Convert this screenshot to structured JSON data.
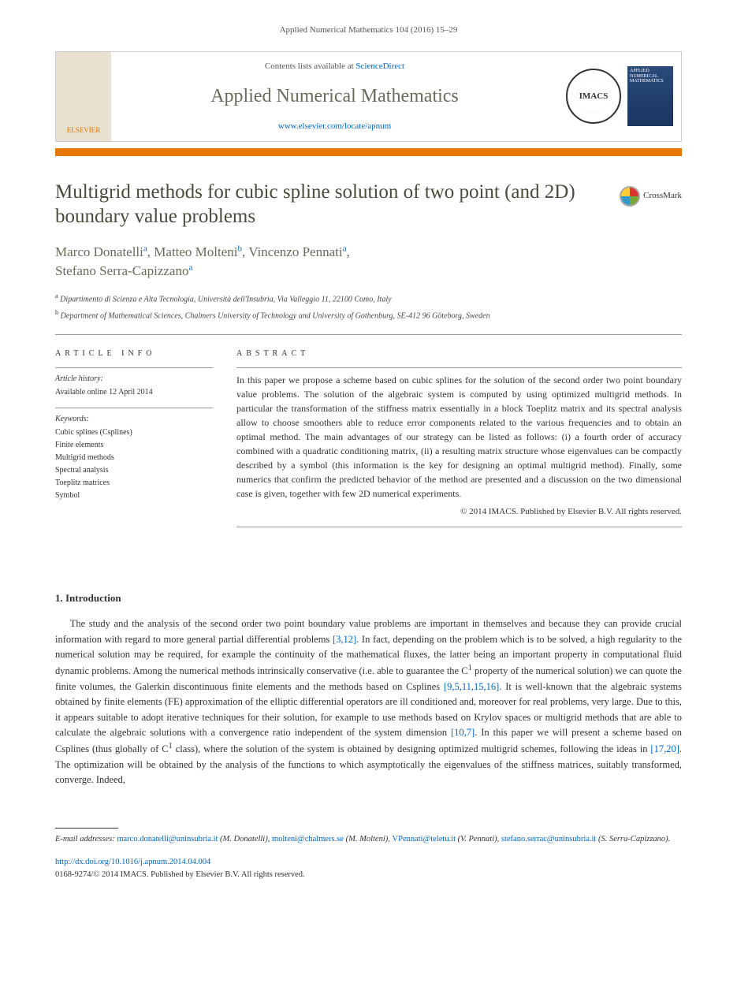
{
  "header_ref": "Applied Numerical Mathematics 104 (2016) 15–29",
  "banner": {
    "contents_text": "Contents lists available at ",
    "contents_link": "ScienceDirect",
    "journal_name": "Applied Numerical Mathematics",
    "journal_url": "www.elsevier.com/locate/apnum",
    "publisher": "ELSEVIER",
    "imacs_label": "IMACS",
    "cover_text": "APPLIED NUMERICAL MATHEMATICS"
  },
  "crossmark_label": "CrossMark",
  "title": "Multigrid methods for cubic spline solution of two point (and 2D) boundary value problems",
  "authors": [
    {
      "name": "Marco Donatelli",
      "aff": "a"
    },
    {
      "name": "Matteo Molteni",
      "aff": "b"
    },
    {
      "name": "Vincenzo Pennati",
      "aff": "a"
    },
    {
      "name": "Stefano Serra-Capizzano",
      "aff": "a"
    }
  ],
  "affiliations": {
    "a": "Dipartimento di Scienza e Alta Tecnologia, Università dell'Insubria, Via Valleggio 11, 22100 Como, Italy",
    "b": "Department of Mathematical Sciences, Chalmers University of Technology and University of Gothenburg, SE-412 96 Göteborg, Sweden"
  },
  "info": {
    "header": "ARTICLE INFO",
    "history_label": "Article history:",
    "history_text": "Available online 12 April 2014",
    "keywords_label": "Keywords:",
    "keywords": [
      "Cubic splines (Csplines)",
      "Finite elements",
      "Multigrid methods",
      "Spectral analysis",
      "Toeplitz matrices",
      "Symbol"
    ]
  },
  "abstract": {
    "header": "ABSTRACT",
    "text": "In this paper we propose a scheme based on cubic splines for the solution of the second order two point boundary value problems. The solution of the algebraic system is computed by using optimized multigrid methods. In particular the transformation of the stiffness matrix essentially in a block Toeplitz matrix and its spectral analysis allow to choose smoothers able to reduce error components related to the various frequencies and to obtain an optimal method. The main advantages of our strategy can be listed as follows: (i) a fourth order of accuracy combined with a quadratic conditioning matrix, (ii) a resulting matrix structure whose eigenvalues can be compactly described by a symbol (this information is the key for designing an optimal multigrid method). Finally, some numerics that confirm the predicted behavior of the method are presented and a discussion on the two dimensional case is given, together with few 2D numerical experiments.",
    "copyright": "© 2014 IMACS. Published by Elsevier B.V. All rights reserved."
  },
  "introduction": {
    "heading": "1. Introduction",
    "paragraph": "The study and the analysis of the second order two point boundary value problems are important in themselves and because they can provide crucial information with regard to more general partial differential problems [3,12]. In fact, depending on the problem which is to be solved, a high regularity to the numerical solution may be required, for example the continuity of the mathematical fluxes, the latter being an important property in computational fluid dynamic problems. Among the numerical methods intrinsically conservative (i.e. able to guarantee the C¹ property of the numerical solution) we can quote the finite volumes, the Galerkin discontinuous finite elements and the methods based on Csplines [9,5,11,15,16]. It is well-known that the algebraic systems obtained by finite elements (FE) approximation of the elliptic differential operators are ill conditioned and, moreover for real problems, very large. Due to this, it appears suitable to adopt iterative techniques for their solution, for example to use methods based on Krylov spaces or multigrid methods that are able to calculate the algebraic solutions with a convergence ratio independent of the system dimension [10,7]. In this paper we will present a scheme based on Csplines (thus globally of C¹ class), where the solution of the system is obtained by designing optimized multigrid schemes, following the ideas in [17,20]. The optimization will be obtained by the analysis of the functions to which asymptotically the eigenvalues of the stiffness matrices, suitably transformed, converge. Indeed,",
    "refs": {
      "r1": "[3,12]",
      "r2": "[9,5,11,15,16]",
      "r3": "[10,7]",
      "r4": "[17,20]"
    }
  },
  "footer": {
    "email_label": "E-mail addresses:",
    "emails": [
      {
        "addr": "marco.donatelli@uninsubria.it",
        "who": "(M. Donatelli)"
      },
      {
        "addr": "molteni@chalmers.se",
        "who": "(M. Molteni)"
      },
      {
        "addr": "VPennati@teletu.it",
        "who": "(V. Pennati)"
      },
      {
        "addr": "stefano.serrac@uninsubria.it",
        "who": "(S. Serra-Capizzano)"
      }
    ],
    "doi": "http://dx.doi.org/10.1016/j.apnum.2014.04.004",
    "issn_line": "0168-9274/© 2014 IMACS. Published by Elsevier B.V. All rights reserved."
  },
  "colors": {
    "link": "#0066cc",
    "accent": "#e67700",
    "title_text": "#4a4a3a",
    "author_text": "#6b6b5a"
  }
}
